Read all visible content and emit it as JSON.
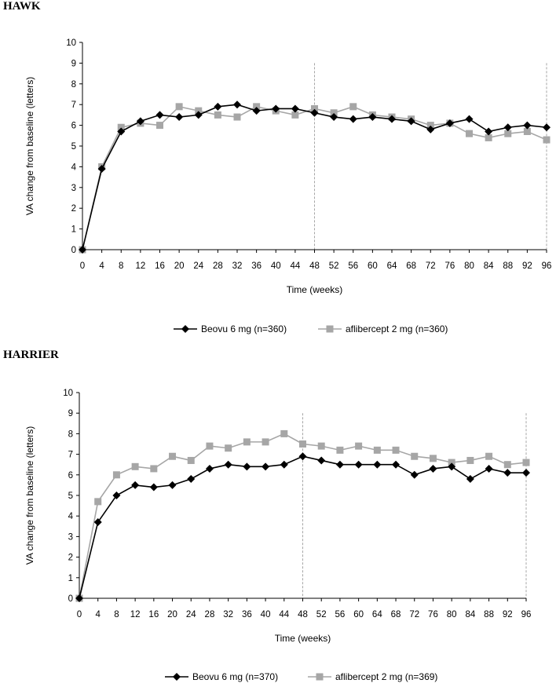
{
  "colors": {
    "beovu": "#000000",
    "aflibercept": "#a6a6a6",
    "axis": "#000000",
    "refline": "#a6a6a6"
  },
  "chart_data": [
    {
      "panel_title": "HAWK",
      "type": "line",
      "xlabel": "Time (weeks)",
      "ylabel": "VA change from baseline (letters)",
      "xlim": [
        0,
        96
      ],
      "ylim": [
        0,
        10
      ],
      "x_ticks": [
        "0",
        "4",
        "8",
        "12",
        "16",
        "20",
        "24",
        "28",
        "32",
        "36",
        "40",
        "44",
        "48",
        "52",
        "56",
        "60",
        "64",
        "68",
        "72",
        "76",
        "80",
        "84",
        "88",
        "92",
        "96"
      ],
      "y_ticks": [
        "0",
        "1",
        "2",
        "3",
        "4",
        "5",
        "6",
        "7",
        "8",
        "9",
        "10"
      ],
      "grid": false,
      "legend_position": "bottom",
      "reference_lines_x": [
        48,
        96
      ],
      "series": [
        {
          "name": "Beovu 6 mg (n=360)",
          "marker": "diamond",
          "x": [
            0,
            4,
            8,
            12,
            16,
            20,
            24,
            28,
            32,
            36,
            40,
            44,
            48,
            52,
            56,
            60,
            64,
            68,
            72,
            76,
            80,
            84,
            88,
            92,
            96
          ],
          "values": [
            0,
            3.9,
            5.7,
            6.2,
            6.5,
            6.4,
            6.5,
            6.9,
            7.0,
            6.7,
            6.8,
            6.8,
            6.6,
            6.4,
            6.3,
            6.4,
            6.3,
            6.2,
            5.8,
            6.1,
            6.3,
            5.7,
            5.9,
            6.0,
            5.9
          ]
        },
        {
          "name": "aflibercept 2 mg (n=360)",
          "marker": "square",
          "x": [
            0,
            4,
            8,
            12,
            16,
            20,
            24,
            28,
            32,
            36,
            40,
            44,
            48,
            52,
            56,
            60,
            64,
            68,
            72,
            76,
            80,
            84,
            88,
            92,
            96
          ],
          "values": [
            0,
            4.0,
            5.9,
            6.1,
            6.0,
            6.9,
            6.7,
            6.5,
            6.4,
            6.9,
            6.7,
            6.5,
            6.8,
            6.6,
            6.9,
            6.5,
            6.4,
            6.3,
            6.0,
            6.1,
            5.6,
            5.4,
            5.6,
            5.7,
            5.3
          ]
        }
      ]
    },
    {
      "panel_title": "HARRIER",
      "type": "line",
      "xlabel": "Time (weeks)",
      "ylabel": "VA change from baseline (letters)",
      "xlim": [
        0,
        96
      ],
      "ylim": [
        0,
        10
      ],
      "x_ticks": [
        "0",
        "4",
        "8",
        "12",
        "16",
        "20",
        "24",
        "28",
        "32",
        "36",
        "40",
        "44",
        "48",
        "52",
        "56",
        "60",
        "64",
        "68",
        "72",
        "76",
        "80",
        "84",
        "88",
        "92",
        "96"
      ],
      "y_ticks": [
        "0",
        "1",
        "2",
        "3",
        "4",
        "5",
        "6",
        "7",
        "8",
        "9",
        "10"
      ],
      "grid": false,
      "legend_position": "bottom",
      "reference_lines_x": [
        48,
        96
      ],
      "series": [
        {
          "name": "Beovu 6 mg (n=370)",
          "marker": "diamond",
          "x": [
            0,
            4,
            8,
            12,
            16,
            20,
            24,
            28,
            32,
            36,
            40,
            44,
            48,
            52,
            56,
            60,
            64,
            68,
            72,
            76,
            80,
            84,
            88,
            92,
            96
          ],
          "values": [
            0,
            3.7,
            5.0,
            5.5,
            5.4,
            5.5,
            5.8,
            6.3,
            6.5,
            6.4,
            6.4,
            6.5,
            6.9,
            6.7,
            6.5,
            6.5,
            6.5,
            6.5,
            6.0,
            6.3,
            6.4,
            5.8,
            6.3,
            6.1,
            6.1
          ]
        },
        {
          "name": "aflibercept 2 mg (n=369)",
          "marker": "square",
          "x": [
            0,
            4,
            8,
            12,
            16,
            20,
            24,
            28,
            32,
            36,
            40,
            44,
            48,
            52,
            56,
            60,
            64,
            68,
            72,
            76,
            80,
            84,
            88,
            92,
            96
          ],
          "values": [
            0,
            4.7,
            6.0,
            6.4,
            6.3,
            6.9,
            6.7,
            7.4,
            7.3,
            7.6,
            7.6,
            8.0,
            7.5,
            7.4,
            7.2,
            7.4,
            7.2,
            7.2,
            6.9,
            6.8,
            6.6,
            6.7,
            6.9,
            6.5,
            6.6
          ]
        }
      ]
    }
  ]
}
